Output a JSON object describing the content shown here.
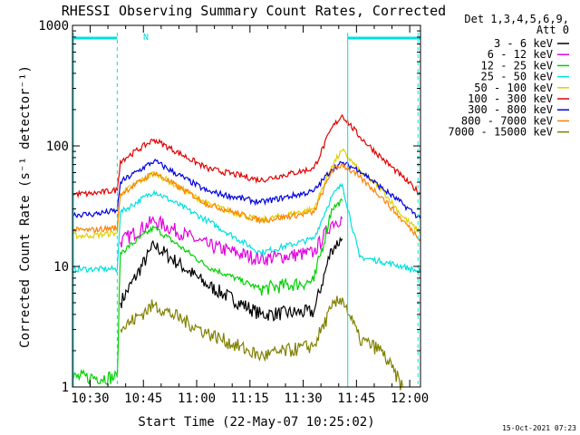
{
  "chart_data": {
    "type": "line",
    "title": "RHESSI Observing Summary Count Rates, Corrected",
    "xlabel": "Start Time (22-May-07 10:25:02)",
    "ylabel": "Corrected Count Rate (s⁻¹ detector⁻¹)",
    "yscale": "log",
    "ylim": [
      1,
      1000
    ],
    "xlim_minutes_after_start": [
      0,
      98
    ],
    "x_tick_labels": [
      "10:30",
      "10:45",
      "11:00",
      "11:15",
      "11:30",
      "11:45",
      "12:00"
    ],
    "y_tick_labels": [
      "1",
      "10",
      "100",
      "1000"
    ],
    "legend_header": [
      "Det 1,3,4,5,6,9,",
      "Att 0"
    ],
    "legend_position": "right",
    "timestamp": "15-Oct-2021 07:23",
    "night_marker": "N",
    "x": [
      0,
      4.97,
      12.6,
      13.5,
      22.97,
      37.97,
      52.97,
      67.97,
      72.97,
      75.97,
      80.8,
      86.97,
      92.97,
      97.97
    ],
    "series": [
      {
        "name": "3 - 6 keV",
        "color": "#000000",
        "values": [
          null,
          null,
          null,
          5,
          15,
          7,
          4,
          4.2,
          14,
          17,
          null,
          null,
          null,
          null
        ]
      },
      {
        "name": "6 - 12 keV",
        "color": "#e000e0",
        "values": [
          null,
          null,
          null,
          16,
          24,
          15,
          11.5,
          13,
          23,
          25,
          null,
          null,
          null,
          null
        ]
      },
      {
        "name": "12 - 25 keV",
        "color": "#00d000",
        "values": [
          1.2,
          1.2,
          1.2,
          13,
          21,
          10,
          6.5,
          7.5,
          30,
          35,
          null,
          null,
          null,
          null
        ]
      },
      {
        "name": "25 - 50 keV",
        "color": "#00e0e0",
        "values": [
          9.5,
          9.5,
          9.5,
          28,
          42,
          24,
          13,
          17,
          38,
          48,
          12,
          11,
          10,
          9
        ]
      },
      {
        "name": "50 - 100 keV",
        "color": "#e0d000",
        "values": [
          18,
          18,
          19,
          40,
          60,
          33,
          24,
          30,
          68,
          92,
          62,
          44,
          26,
          19
        ]
      },
      {
        "name": "100 - 300 keV",
        "color": "#e00000",
        "values": [
          40,
          40,
          43,
          75,
          113,
          65,
          52,
          65,
          140,
          180,
          120,
          80,
          55,
          40
        ]
      },
      {
        "name": "300 - 800 keV",
        "color": "#0000e0",
        "values": [
          27,
          27,
          29,
          50,
          75,
          42,
          34,
          42,
          64,
          72,
          63,
          45,
          33,
          25
        ]
      },
      {
        "name": "800 - 7000 keV",
        "color": "#ff8000",
        "values": [
          20,
          20,
          21,
          40,
          60,
          33,
          24,
          28,
          62,
          70,
          55,
          38,
          24,
          17
        ]
      },
      {
        "name": "7000 - 15000 keV",
        "color": "#808000",
        "values": [
          null,
          null,
          null,
          3,
          4.8,
          2.8,
          1.8,
          2.2,
          4.5,
          5.5,
          2.5,
          2,
          1,
          null
        ]
      }
    ]
  }
}
